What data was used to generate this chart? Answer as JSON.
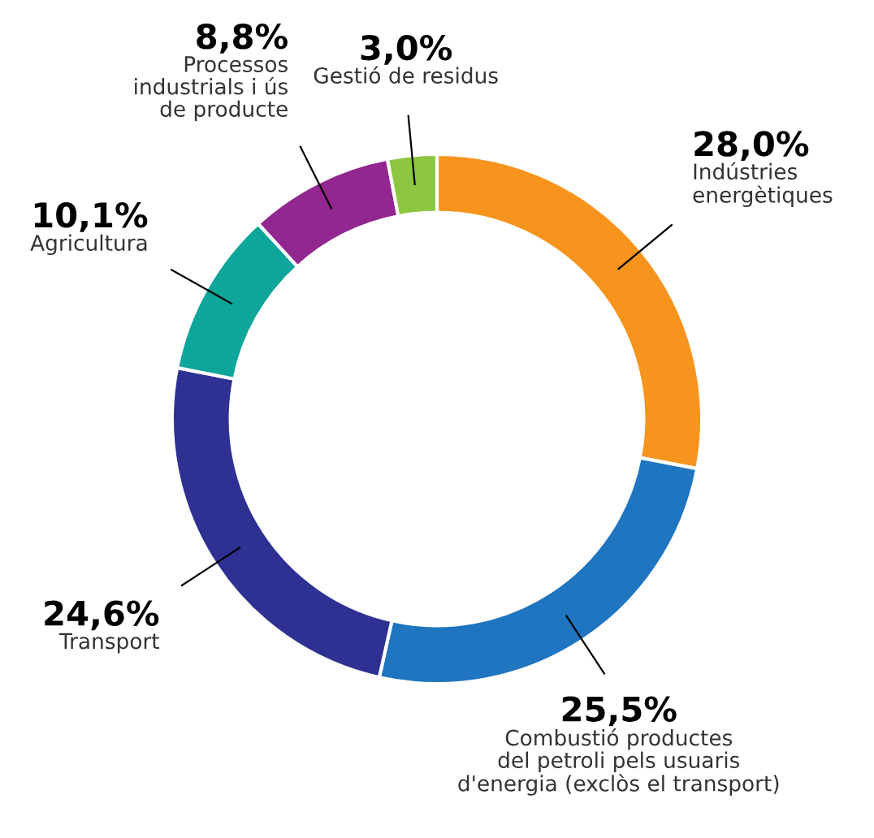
{
  "chart_data": {
    "type": "donut",
    "categories": [
      "Indústries\nenergètiques",
      "Combustió productes\ndel petroli pels usuaris\nd'energia (exclòs el transport)",
      "Transport",
      "Agricultura",
      "Processos\nindustrials i ús\nde producte",
      "Gestió de residus"
    ],
    "values": [
      28.0,
      25.5,
      24.6,
      10.1,
      8.8,
      3.0
    ],
    "value_labels": [
      "28,0%",
      "25,5%",
      "24,6%",
      "10,1%",
      "8,8%",
      "3,0%"
    ],
    "colors": [
      "#f7941d",
      "#1f75c0",
      "#2e3192",
      "#0ea59a",
      "#92278f",
      "#8dc63f"
    ]
  }
}
